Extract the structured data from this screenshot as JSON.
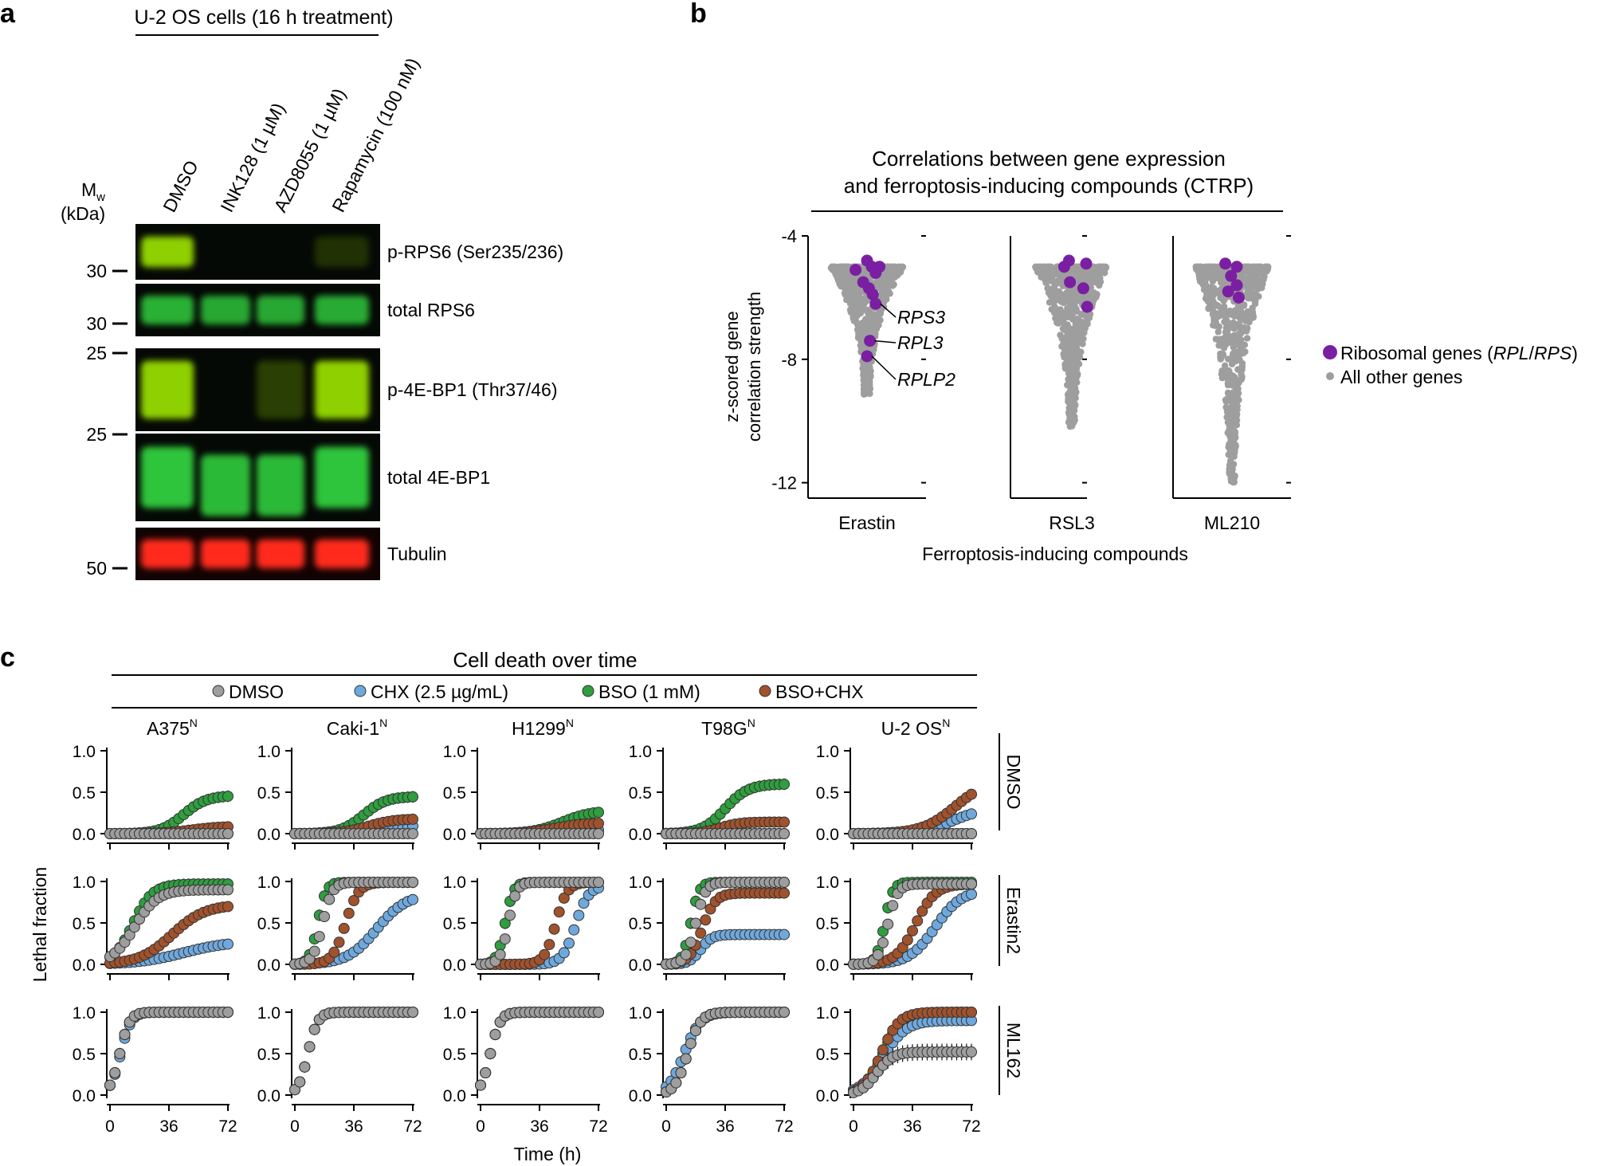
{
  "panel_a": {
    "letter": "a",
    "header": "U-2 OS cells (16 h treatment)",
    "lanes": [
      "DMSO",
      "INK128 (1 µM)",
      "AZD8055 (1 µM)",
      "Rapamycin (100 nM)"
    ],
    "mw_label_m": "M",
    "mw_label_w": "w",
    "mw_label_unit": "(kDa)",
    "markers": [
      "30",
      "30",
      "25",
      "25",
      "50"
    ],
    "blots": [
      {
        "label": "p-RPS6 (Ser235/236)",
        "color": "#8fd000",
        "intensity": [
          1.0,
          0.02,
          0.03,
          0.05
        ]
      },
      {
        "label": "total RPS6",
        "color": "#2fc43a",
        "intensity": [
          0.75,
          0.7,
          0.7,
          0.72
        ]
      },
      {
        "label": "p-4E-BP1 (Thr37/46)",
        "color": "#8fd000",
        "intensity": [
          0.95,
          0.02,
          0.12,
          1.0
        ]
      },
      {
        "label": "total 4E-BP1",
        "color": "#2fc43a",
        "intensity": [
          0.9,
          0.8,
          0.8,
          0.9
        ]
      },
      {
        "label": "Tubulin",
        "color": "#ff2a1a",
        "intensity": [
          1.0,
          1.0,
          1.0,
          1.0
        ]
      }
    ]
  },
  "panel_b": {
    "letter": "b",
    "legend_ribosomal_pre": "Ribosomal genes (",
    "legend_ribosomal_rpl": "RPL",
    "legend_ribosomal_sep": "/",
    "legend_ribosomal_rps": "RPS",
    "legend_ribosomal_post": ")",
    "legend_other": "All other genes",
    "ribosomal_color": "#7b1fa2",
    "other_color": "#9e9e9e"
  },
  "panel_c": {
    "letter": "c",
    "legend_colors": {
      "DMSO": "#9e9e9e",
      "CHX": "#6fa8dc",
      "BSO": "#2e9e3e",
      "BSOCHX": "#a0522d"
    }
  },
  "chart_data": [
    {
      "type": "scatter",
      "title_line1": "Correlations between gene expression",
      "title_line2": "and ferroptosis-inducing compounds (CTRP)",
      "xlabel": "Ferroptosis-inducing compounds",
      "ylabel_line1": "z-scored gene",
      "ylabel_line2": "correlation strength",
      "ylim": [
        -12.5,
        -4
      ],
      "yticks": [
        "-4",
        "-8",
        "-12"
      ],
      "groups": [
        {
          "name": "Erastin",
          "other_min": -9.2,
          "ribosomal": [
            [
              -4.8,
              0.0
            ],
            [
              -5.0,
              0.5
            ],
            [
              -5.0,
              1.3
            ],
            [
              -5.1,
              -1.2
            ],
            [
              -5.2,
              0.9
            ],
            [
              -5.5,
              -0.4
            ],
            [
              -5.7,
              0.2
            ],
            [
              -5.9,
              0.6
            ],
            [
              -6.2,
              0.9
            ],
            [
              -7.4,
              0.3
            ],
            [
              -7.9,
              0.0
            ]
          ],
          "annotations": [
            "RPS3",
            "RPL3",
            "RPLP2"
          ]
        },
        {
          "name": "RSL3",
          "other_min": -10.2,
          "ribosomal": [
            [
              -4.8,
              -0.3
            ],
            [
              -4.9,
              1.5
            ],
            [
              -5.0,
              -0.8
            ],
            [
              -5.5,
              -0.2
            ],
            [
              -5.7,
              1.2
            ],
            [
              -6.3,
              1.6
            ]
          ]
        },
        {
          "name": "ML210",
          "other_min": -12.0,
          "ribosomal": [
            [
              -4.9,
              -0.7
            ],
            [
              -5.0,
              0.5
            ],
            [
              -5.3,
              -0.1
            ],
            [
              -5.6,
              0.5
            ],
            [
              -5.8,
              -0.4
            ],
            [
              -6.0,
              0.7
            ]
          ]
        }
      ]
    },
    {
      "type": "line",
      "title": "Cell death over time",
      "xlabel": "Time (h)",
      "ylabel": "Lethal fraction",
      "xticks": [
        "0",
        "36",
        "72"
      ],
      "yticks": [
        "0.0",
        "0.5",
        "1.0"
      ],
      "xlim": [
        0,
        72
      ],
      "ylim": [
        0,
        1
      ],
      "x": [
        0,
        3,
        6,
        9,
        12,
        15,
        18,
        21,
        24,
        27,
        30,
        33,
        36,
        39,
        42,
        45,
        48,
        51,
        54,
        57,
        60,
        63,
        66,
        69,
        72
      ],
      "series_names": [
        "DMSO",
        "CHX (2.5 µg/mL)",
        "BSO (1 mM)",
        "BSO+CHX"
      ],
      "cell_lines": [
        {
          "label": "A375",
          "sup": "N"
        },
        {
          "label": "Caki-1",
          "sup": "N"
        },
        {
          "label": "H1299",
          "sup": "N"
        },
        {
          "label": "T98G",
          "sup": "N"
        },
        {
          "label": "U-2 OS",
          "sup": "N"
        }
      ],
      "row_treatments": [
        "DMSO",
        "Erastin2",
        "ML162"
      ],
      "panels": [
        [
          {
            "DMSO": [
              0,
              0.02,
              0.06
            ],
            "CHX": [
              0,
              0.02,
              0.06
            ],
            "BSO": [
              0.46,
              45,
              7
            ],
            "BSOCHX": [
              0.09,
              50,
              9
            ]
          },
          {
            "DMSO": [
              0,
              0.02,
              0.06
            ],
            "CHX": [
              0.1,
              50,
              9
            ],
            "BSO": [
              0.45,
              42,
              7
            ],
            "BSOCHX": [
              0.18,
              45,
              8
            ]
          },
          {
            "DMSO": [
              0,
              0.02,
              0.06
            ],
            "CHX": [
              0.05,
              55,
              9
            ],
            "BSO": [
              0.28,
              50,
              9
            ],
            "BSOCHX": [
              0.13,
              45,
              9
            ]
          },
          {
            "DMSO": [
              0,
              0.02,
              0.06
            ],
            "CHX": [
              0,
              0.02,
              0.06
            ],
            "BSO": [
              0.6,
              36,
              7
            ],
            "BSOCHX": [
              0.14,
              33,
              6
            ]
          },
          {
            "DMSO": [
              0,
              0.02,
              0.06
            ],
            "CHX": [
              0.3,
              60,
              9
            ],
            "BSO": [
              0,
              0.02,
              0.06
            ],
            "BSOCHX": [
              0.65,
              62,
              10
            ]
          }
        ],
        [
          {
            "DMSO": [
              0.9,
              15,
              7
            ],
            "CHX": [
              0.28,
              45,
              14
            ],
            "BSO": [
              0.97,
              14,
              6
            ],
            "BSOCHX": [
              0.72,
              38,
              10
            ]
          },
          {
            "DMSO": [
              0.99,
              17,
              3
            ],
            "CHX": [
              0.85,
              50,
              9
            ],
            "BSO": [
              0.99,
              14,
              2.5
            ],
            "BSOCHX": [
              0.99,
              31,
              4
            ]
          },
          {
            "DMSO": [
              0.99,
              17,
              2.5
            ],
            "CHX": [
              0.95,
              58,
              4
            ],
            "BSO": [
              0.99,
              15,
              2.5
            ],
            "BSOCHX": [
              0.99,
              46,
              3.5
            ]
          },
          {
            "DMSO": [
              0.99,
              18,
              3
            ],
            "CHX": [
              0.36,
              21,
              3.5
            ],
            "BSO": [
              0.99,
              15,
              2.5
            ],
            "BSOCHX": [
              0.86,
              22,
              4
            ]
          },
          {
            "DMSO": [
              0.97,
              21,
              3
            ],
            "CHX": [
              0.9,
              50,
              8
            ],
            "BSO": [
              0.99,
              19,
              2.5
            ],
            "BSOCHX": [
              0.97,
              38,
              6
            ]
          }
        ],
        [
          {
            "DMSO": [
              1,
              6,
              3
            ],
            "CHX": [
              1,
              6.5,
              3.2
            ],
            "BSO": [
              1,
              6,
              3
            ],
            "BSOCHX": [
              1,
              6,
              3
            ]
          },
          {
            "DMSO": [
              1,
              8,
              3
            ],
            "CHX": [
              1,
              8,
              3
            ],
            "BSO": [
              1,
              8,
              3
            ],
            "BSOCHX": [
              1,
              8,
              3
            ]
          },
          {
            "DMSO": [
              1,
              6,
              3
            ],
            "CHX": [
              1,
              6,
              3
            ],
            "BSO": [
              1,
              6,
              3
            ],
            "BSOCHX": [
              1,
              6,
              3
            ]
          },
          {
            "DMSO": [
              1,
              13,
              4
            ],
            "CHX": [
              1,
              11,
              5
            ],
            "BSO": [
              1,
              13,
              4
            ],
            "BSOCHX": [
              1,
              13,
              4
            ]
          },
          {
            "DMSO": [
              0.52,
              14,
              5
            ],
            "CHX": [
              0.9,
              18,
              7
            ],
            "BSO": [
              1,
              18,
              5.5
            ],
            "BSOCHX": [
              1,
              17,
              5.5
            ]
          }
        ]
      ]
    }
  ]
}
